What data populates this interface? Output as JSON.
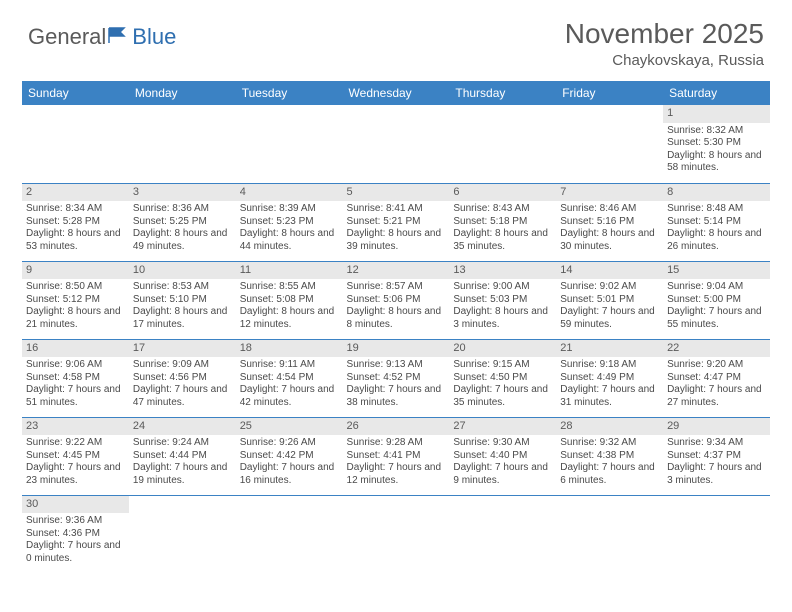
{
  "logo": {
    "text1": "General",
    "text2": "Blue"
  },
  "title": "November 2025",
  "location": "Chaykovskaya, Russia",
  "colors": {
    "header_bg": "#3b82c4",
    "header_text": "#ffffff",
    "daynum_bg": "#e8e8e8",
    "border": "#3b82c4",
    "text": "#4a4a4a",
    "title": "#5a5a5a"
  },
  "weekdays": [
    "Sunday",
    "Monday",
    "Tuesday",
    "Wednesday",
    "Thursday",
    "Friday",
    "Saturday"
  ],
  "weeks": [
    [
      null,
      null,
      null,
      null,
      null,
      null,
      {
        "n": "1",
        "sr": "Sunrise: 8:32 AM",
        "ss": "Sunset: 5:30 PM",
        "dl": "Daylight: 8 hours and 58 minutes."
      }
    ],
    [
      {
        "n": "2",
        "sr": "Sunrise: 8:34 AM",
        "ss": "Sunset: 5:28 PM",
        "dl": "Daylight: 8 hours and 53 minutes."
      },
      {
        "n": "3",
        "sr": "Sunrise: 8:36 AM",
        "ss": "Sunset: 5:25 PM",
        "dl": "Daylight: 8 hours and 49 minutes."
      },
      {
        "n": "4",
        "sr": "Sunrise: 8:39 AM",
        "ss": "Sunset: 5:23 PM",
        "dl": "Daylight: 8 hours and 44 minutes."
      },
      {
        "n": "5",
        "sr": "Sunrise: 8:41 AM",
        "ss": "Sunset: 5:21 PM",
        "dl": "Daylight: 8 hours and 39 minutes."
      },
      {
        "n": "6",
        "sr": "Sunrise: 8:43 AM",
        "ss": "Sunset: 5:18 PM",
        "dl": "Daylight: 8 hours and 35 minutes."
      },
      {
        "n": "7",
        "sr": "Sunrise: 8:46 AM",
        "ss": "Sunset: 5:16 PM",
        "dl": "Daylight: 8 hours and 30 minutes."
      },
      {
        "n": "8",
        "sr": "Sunrise: 8:48 AM",
        "ss": "Sunset: 5:14 PM",
        "dl": "Daylight: 8 hours and 26 minutes."
      }
    ],
    [
      {
        "n": "9",
        "sr": "Sunrise: 8:50 AM",
        "ss": "Sunset: 5:12 PM",
        "dl": "Daylight: 8 hours and 21 minutes."
      },
      {
        "n": "10",
        "sr": "Sunrise: 8:53 AM",
        "ss": "Sunset: 5:10 PM",
        "dl": "Daylight: 8 hours and 17 minutes."
      },
      {
        "n": "11",
        "sr": "Sunrise: 8:55 AM",
        "ss": "Sunset: 5:08 PM",
        "dl": "Daylight: 8 hours and 12 minutes."
      },
      {
        "n": "12",
        "sr": "Sunrise: 8:57 AM",
        "ss": "Sunset: 5:06 PM",
        "dl": "Daylight: 8 hours and 8 minutes."
      },
      {
        "n": "13",
        "sr": "Sunrise: 9:00 AM",
        "ss": "Sunset: 5:03 PM",
        "dl": "Daylight: 8 hours and 3 minutes."
      },
      {
        "n": "14",
        "sr": "Sunrise: 9:02 AM",
        "ss": "Sunset: 5:01 PM",
        "dl": "Daylight: 7 hours and 59 minutes."
      },
      {
        "n": "15",
        "sr": "Sunrise: 9:04 AM",
        "ss": "Sunset: 5:00 PM",
        "dl": "Daylight: 7 hours and 55 minutes."
      }
    ],
    [
      {
        "n": "16",
        "sr": "Sunrise: 9:06 AM",
        "ss": "Sunset: 4:58 PM",
        "dl": "Daylight: 7 hours and 51 minutes."
      },
      {
        "n": "17",
        "sr": "Sunrise: 9:09 AM",
        "ss": "Sunset: 4:56 PM",
        "dl": "Daylight: 7 hours and 47 minutes."
      },
      {
        "n": "18",
        "sr": "Sunrise: 9:11 AM",
        "ss": "Sunset: 4:54 PM",
        "dl": "Daylight: 7 hours and 42 minutes."
      },
      {
        "n": "19",
        "sr": "Sunrise: 9:13 AM",
        "ss": "Sunset: 4:52 PM",
        "dl": "Daylight: 7 hours and 38 minutes."
      },
      {
        "n": "20",
        "sr": "Sunrise: 9:15 AM",
        "ss": "Sunset: 4:50 PM",
        "dl": "Daylight: 7 hours and 35 minutes."
      },
      {
        "n": "21",
        "sr": "Sunrise: 9:18 AM",
        "ss": "Sunset: 4:49 PM",
        "dl": "Daylight: 7 hours and 31 minutes."
      },
      {
        "n": "22",
        "sr": "Sunrise: 9:20 AM",
        "ss": "Sunset: 4:47 PM",
        "dl": "Daylight: 7 hours and 27 minutes."
      }
    ],
    [
      {
        "n": "23",
        "sr": "Sunrise: 9:22 AM",
        "ss": "Sunset: 4:45 PM",
        "dl": "Daylight: 7 hours and 23 minutes."
      },
      {
        "n": "24",
        "sr": "Sunrise: 9:24 AM",
        "ss": "Sunset: 4:44 PM",
        "dl": "Daylight: 7 hours and 19 minutes."
      },
      {
        "n": "25",
        "sr": "Sunrise: 9:26 AM",
        "ss": "Sunset: 4:42 PM",
        "dl": "Daylight: 7 hours and 16 minutes."
      },
      {
        "n": "26",
        "sr": "Sunrise: 9:28 AM",
        "ss": "Sunset: 4:41 PM",
        "dl": "Daylight: 7 hours and 12 minutes."
      },
      {
        "n": "27",
        "sr": "Sunrise: 9:30 AM",
        "ss": "Sunset: 4:40 PM",
        "dl": "Daylight: 7 hours and 9 minutes."
      },
      {
        "n": "28",
        "sr": "Sunrise: 9:32 AM",
        "ss": "Sunset: 4:38 PM",
        "dl": "Daylight: 7 hours and 6 minutes."
      },
      {
        "n": "29",
        "sr": "Sunrise: 9:34 AM",
        "ss": "Sunset: 4:37 PM",
        "dl": "Daylight: 7 hours and 3 minutes."
      }
    ],
    [
      {
        "n": "30",
        "sr": "Sunrise: 9:36 AM",
        "ss": "Sunset: 4:36 PM",
        "dl": "Daylight: 7 hours and 0 minutes."
      },
      null,
      null,
      null,
      null,
      null,
      null
    ]
  ]
}
